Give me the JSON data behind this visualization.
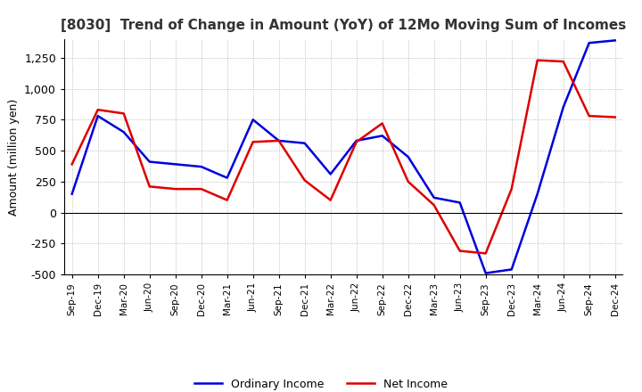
{
  "title": "[8030]  Trend of Change in Amount (YoY) of 12Mo Moving Sum of Incomes",
  "ylabel": "Amount (million yen)",
  "ylim": [
    -500,
    1400
  ],
  "yticks": [
    -500,
    -250,
    0,
    250,
    500,
    750,
    1000,
    1250
  ],
  "background_color": "#ffffff",
  "grid_color": "#aaaaaa",
  "ordinary_income_color": "#0000dd",
  "net_income_color": "#dd0000",
  "x_labels": [
    "Sep-19",
    "Dec-19",
    "Mar-20",
    "Jun-20",
    "Sep-20",
    "Dec-20",
    "Mar-21",
    "Jun-21",
    "Sep-21",
    "Dec-21",
    "Mar-22",
    "Jun-22",
    "Sep-22",
    "Dec-22",
    "Mar-23",
    "Jun-23",
    "Sep-23",
    "Dec-23",
    "Mar-24",
    "Jun-24",
    "Sep-24",
    "Dec-24"
  ],
  "ordinary_income": [
    150,
    780,
    650,
    410,
    390,
    370,
    280,
    750,
    580,
    560,
    310,
    580,
    620,
    450,
    120,
    80,
    -490,
    -460,
    150,
    850,
    1370,
    1390
  ],
  "net_income": [
    390,
    830,
    800,
    210,
    190,
    190,
    100,
    570,
    580,
    260,
    100,
    570,
    720,
    250,
    60,
    -310,
    -330,
    190,
    1230,
    1220,
    780,
    770
  ]
}
